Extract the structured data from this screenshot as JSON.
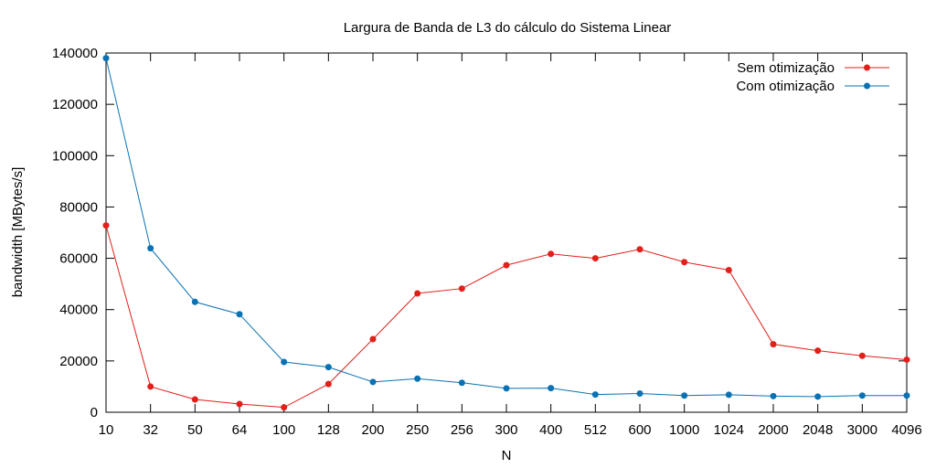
{
  "chart_data": {
    "type": "line",
    "title": "Largura de Banda de L3 do cálculo do Sistema Linear",
    "xlabel": "N",
    "ylabel": "bandwidth [MBytes/s]",
    "categories": [
      "10",
      "32",
      "50",
      "64",
      "100",
      "128",
      "200",
      "250",
      "256",
      "300",
      "400",
      "512",
      "600",
      "1000",
      "1024",
      "2000",
      "2048",
      "3000",
      "4096"
    ],
    "ylim": [
      0,
      140000
    ],
    "yticks": [
      0,
      20000,
      40000,
      60000,
      80000,
      100000,
      120000,
      140000
    ],
    "grid": false,
    "legend_position": "top-right",
    "series": [
      {
        "name": "Sem otimização",
        "color": "#e0201b",
        "values": [
          72800,
          10000,
          5000,
          3200,
          1900,
          11000,
          28500,
          46300,
          48200,
          57300,
          61700,
          60000,
          63500,
          58500,
          55400,
          26500,
          24000,
          22000,
          20500
        ]
      },
      {
        "name": "Com otimização",
        "color": "#0a72b3",
        "values": [
          138000,
          63900,
          43000,
          38200,
          19600,
          17600,
          11800,
          13100,
          11500,
          9300,
          9400,
          6900,
          7300,
          6500,
          6800,
          6300,
          6100,
          6500,
          6500
        ]
      }
    ]
  }
}
